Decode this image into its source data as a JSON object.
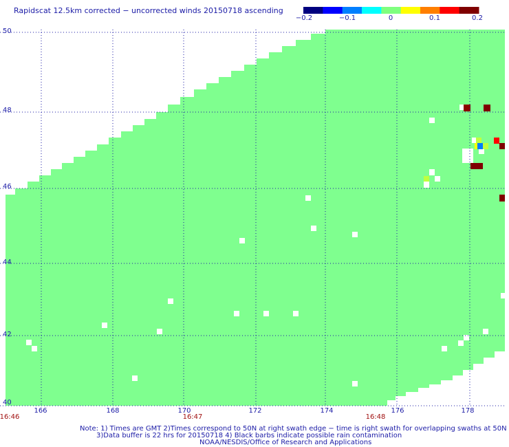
{
  "title": "Rapidscat 12.5km corrected − uncorrected winds 20150718 ascending",
  "colorbar": {
    "ticks": [
      "−0.2",
      "−0.1",
      "0",
      "0.1",
      "0.2"
    ],
    "colors": [
      "#00007f",
      "#0000ff",
      "#007fff",
      "#00ffff",
      "#7fff7f",
      "#ffff00",
      "#ff7f00",
      "#ff0000",
      "#7f0000"
    ]
  },
  "map": {
    "background_color": "#7fff8f",
    "gap_color": "#ffffff",
    "grid_color": "#1a1aa6",
    "lat_labels": [
      "50",
      "48",
      "46",
      "44",
      "42",
      "40"
    ],
    "lon_labels": [
      "166",
      "168",
      "170",
      "172",
      "174",
      "176",
      "178"
    ],
    "time_labels": [
      "16:46",
      "16:47",
      "16:48"
    ]
  },
  "notes": [
    "Note: 1) Times are GMT 2)Times correspond to 50N at right swath edge − time is right swath for overlapping swaths at 50N",
    "3)Data buffer is 22 hrs for 20150718 4) Black barbs indicate possible rain contamination",
    "NOAA/NESDIS/Office of Research and Applications"
  ]
}
